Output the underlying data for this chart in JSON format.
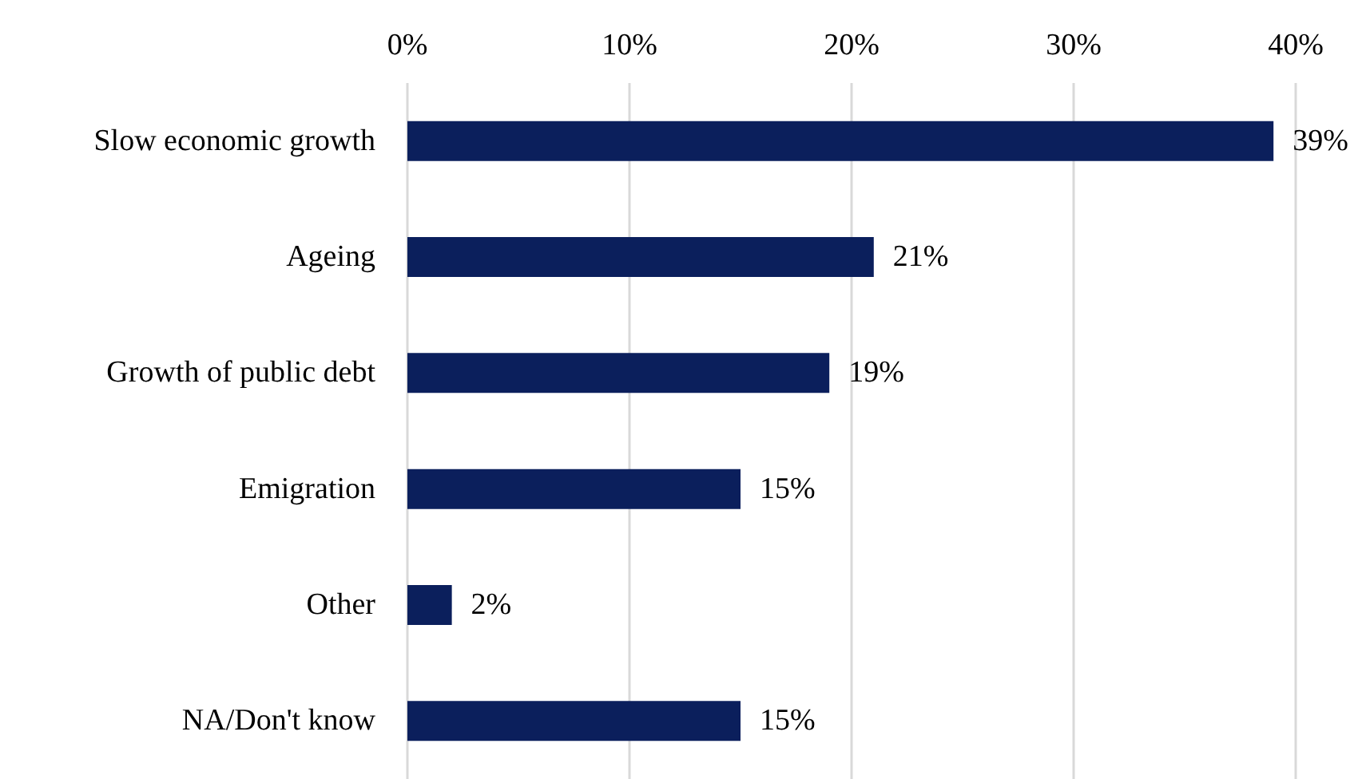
{
  "chart_data": {
    "type": "bar",
    "orientation": "horizontal",
    "categories": [
      "Slow economic growth",
      "Ageing",
      "Growth of public debt",
      "Emigration",
      "Other",
      "NA/Don't know"
    ],
    "values": [
      39,
      21,
      19,
      15,
      2,
      15
    ],
    "value_labels": [
      "39%",
      "21%",
      "19%",
      "15%",
      "2%",
      "15%"
    ],
    "color": "#0b1f5c",
    "xlim": [
      0,
      40
    ],
    "xticks": [
      {
        "value": 0,
        "label": "0%"
      },
      {
        "value": 10,
        "label": "10%"
      },
      {
        "value": 20,
        "label": "20%"
      },
      {
        "value": 30,
        "label": "30%"
      },
      {
        "value": 40,
        "label": "40%"
      }
    ],
    "grid": "x"
  }
}
